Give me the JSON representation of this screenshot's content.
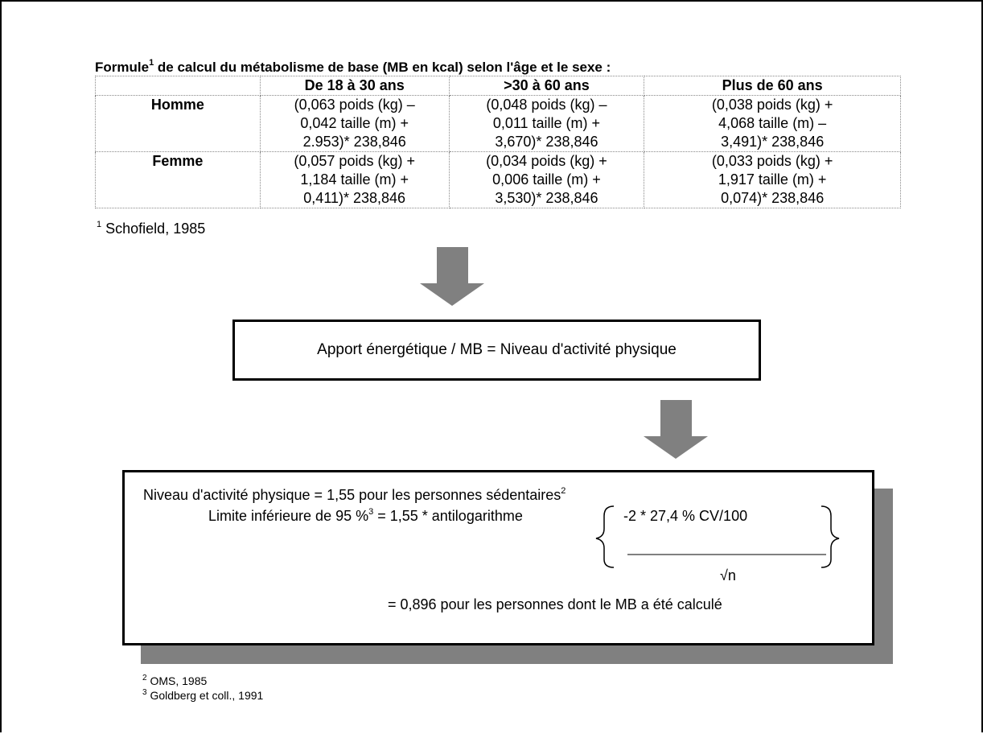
{
  "title": {
    "text": "Formule",
    "sup": "1",
    "rest": " de calcul du métabolisme de base (MB en kcal) selon l'âge et le sexe :"
  },
  "table": {
    "header": [
      "De 18 à 30 ans",
      ">30 à 60 ans",
      "Plus de 60 ans"
    ],
    "rows": [
      {
        "label": "Homme",
        "cells": [
          [
            "(0,063 poids (kg) –",
            "0,042 taille (m) +",
            "2.953)* 238,846"
          ],
          [
            "(0,048 poids (kg) –",
            "0,011 taille (m) +",
            "3,670)* 238,846"
          ],
          [
            "(0,038 poids (kg) +",
            "4,068 taille (m) –",
            "3,491)* 238,846"
          ]
        ]
      },
      {
        "label": "Femme",
        "cells": [
          [
            "(0,057 poids (kg) +",
            "1,184 taille (m) +",
            "0,411)* 238,846"
          ],
          [
            "(0,034 poids (kg) +",
            "0,006 taille (m) +",
            "3,530)* 238,846"
          ],
          [
            "(0,033 poids (kg) +",
            "1,917 taille (m) +",
            "0,074)* 238,846"
          ]
        ]
      }
    ]
  },
  "footnote1": {
    "mark": "1",
    "text": "Schofield, 1985"
  },
  "box1": "Apport énergétique / MB = Niveau d'activité physique",
  "box2": {
    "line1": "Niveau d'activité physique = 1,55 pour les personnes sédentaires",
    "line1_sup": "2",
    "line2": "Limite inférieure de 95 %",
    "line2_sup": "3",
    "line2_rest": " = 1,55 * antilogarithme",
    "numerator": "-2 * 27,4 % CV/100",
    "denominator": "√n",
    "line3": "= 0,896 pour les personnes dont le MB a été calculé"
  },
  "footnotes": [
    {
      "mark": "2",
      "text": "OMS, 1985"
    },
    {
      "mark": "3",
      "text": "Goldberg et coll., 1991"
    }
  ]
}
